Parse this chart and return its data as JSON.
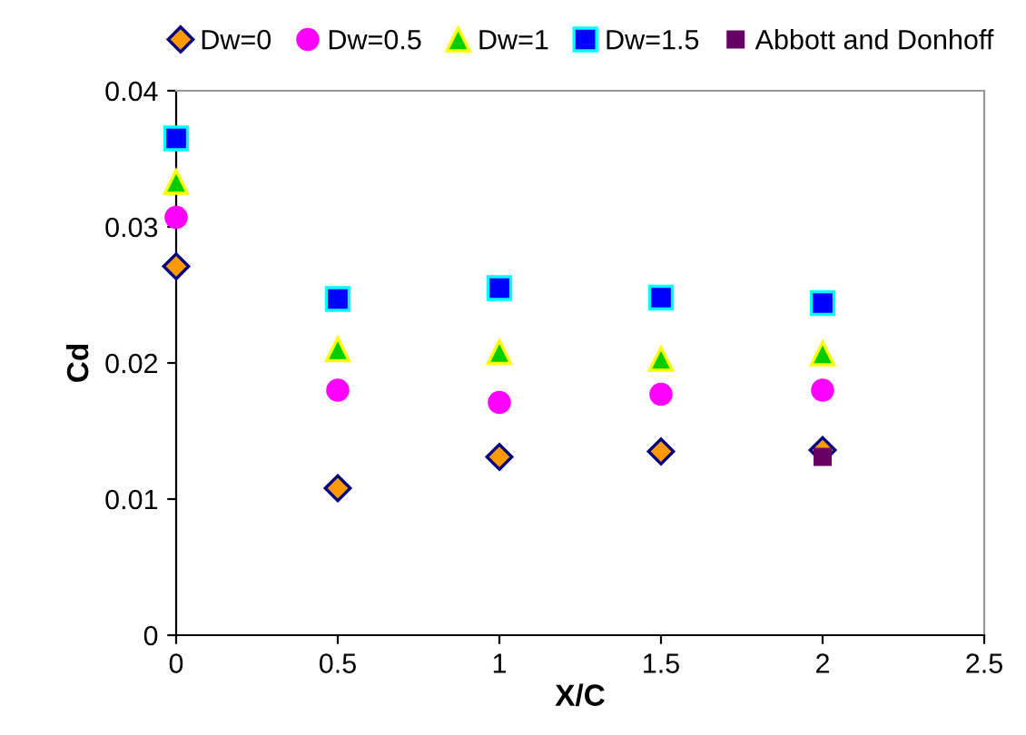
{
  "chart_data": {
    "type": "scatter",
    "xlabel": "X/C",
    "ylabel": "Cd",
    "x": [
      0,
      0.5,
      1,
      1.5,
      2
    ],
    "series": [
      {
        "name": "Dw=0",
        "color": "#ff9900",
        "marker": "diamond",
        "values": [
          0.0271,
          0.0108,
          0.0131,
          0.0135,
          0.0136
        ]
      },
      {
        "name": "Dw=0.5",
        "color": "#ff00ff",
        "marker": "circle",
        "values": [
          0.0307,
          0.018,
          0.0171,
          0.0177,
          0.018
        ]
      },
      {
        "name": "Dw=1",
        "color": "#00cc00",
        "marker": "triangle",
        "values": [
          0.0333,
          0.021,
          0.0208,
          0.0203,
          0.0207
        ]
      },
      {
        "name": "Dw=1.5",
        "color": "#0000ff",
        "marker": "square",
        "values": [
          0.0365,
          0.0247,
          0.0255,
          0.0248,
          0.0244
        ]
      },
      {
        "name": "Abbott and Donhoff",
        "color": "#660066",
        "marker": "square",
        "x": [
          2
        ],
        "values": [
          0.0131
        ]
      }
    ],
    "xlim": [
      0,
      2.5
    ],
    "xticks": [
      0,
      0.5,
      1,
      1.5,
      2,
      2.5
    ],
    "ylim": [
      0,
      0.04
    ],
    "yticks": [
      0,
      0.01,
      0.02,
      0.03,
      0.04
    ],
    "grid": false,
    "legend": "top"
  }
}
